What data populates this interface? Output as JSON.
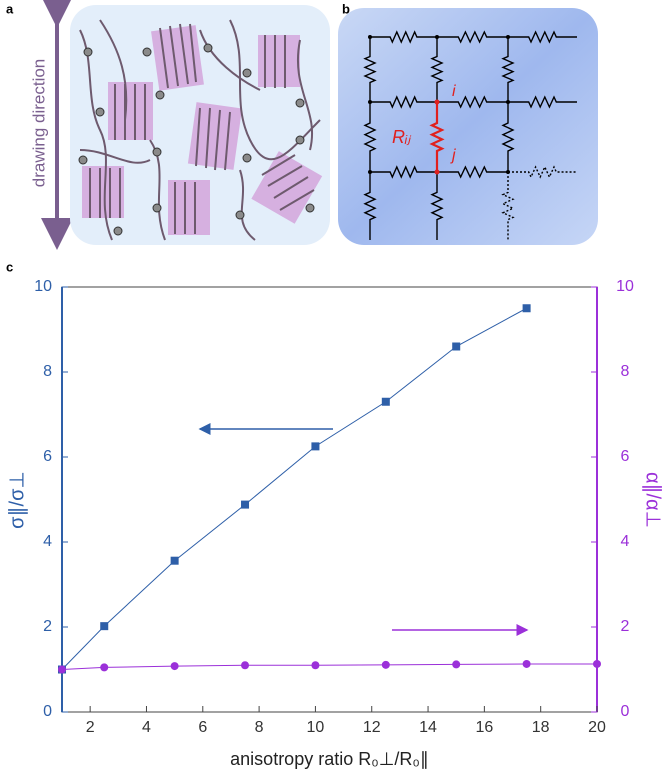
{
  "figure": {
    "panel_labels": [
      "a",
      "b",
      "c"
    ],
    "drawing_direction": "drawing direction",
    "node_i": "i",
    "node_j": "j",
    "resistor_label": "Rᵢⱼ"
  },
  "chart_data": {
    "type": "line",
    "x_label": "anisotropy ratio R₀⊥/R₀∥",
    "y_label": "σ∥/σ⊥",
    "y2_label": "α∥/α⊥",
    "xlim": [
      1,
      20
    ],
    "xticks": [
      2,
      4,
      6,
      8,
      10,
      12,
      14,
      16,
      18,
      20
    ],
    "ylim": [
      0,
      10
    ],
    "yticks": [
      0,
      2,
      4,
      6,
      8,
      10
    ],
    "y2lim": [
      0,
      10
    ],
    "y2ticks": [
      0,
      2,
      4,
      6,
      8,
      10
    ],
    "series": [
      {
        "name": "σ∥/σ⊥",
        "color": "#2e5fa8",
        "marker": "square",
        "x": [
          1,
          2.5,
          5,
          7.5,
          10,
          12.5,
          15,
          17.5
        ],
        "values": [
          1.0,
          2.02,
          3.56,
          4.88,
          6.25,
          7.3,
          8.6,
          9.5
        ]
      },
      {
        "name": "α∥/α⊥",
        "color": "#9b30d9",
        "marker": "circle",
        "axis": "y2",
        "x": [
          1,
          2.5,
          5,
          7.5,
          10,
          12.5,
          15,
          17.5,
          20
        ],
        "values": [
          1.0,
          1.05,
          1.08,
          1.1,
          1.1,
          1.11,
          1.12,
          1.13,
          1.13
        ]
      }
    ]
  }
}
